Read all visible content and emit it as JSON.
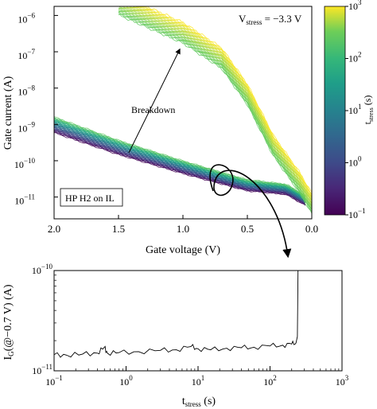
{
  "chart_data": [
    {
      "type": "line",
      "xlabel": "Gate voltage (V)",
      "ylabel": "Gate current (A)",
      "xlim": [
        2.0,
        0.0
      ],
      "ylim_log10": [
        -11.6,
        -5.75
      ],
      "y_scale": "log",
      "x_ticks": [
        "2.0",
        "1.5",
        "1.0",
        "0.5",
        "0.0"
      ],
      "y_ticks": [
        "10^-11",
        "10^-10",
        "10^-9",
        "10^-8",
        "10^-7",
        "10^-6"
      ],
      "annotations": {
        "stress": "V_stress = −3.3 V",
        "breakdown": "Breakdown",
        "sample": "HP H2 on IL"
      },
      "colorbar": {
        "label": "t_stress (s)",
        "scale": "log",
        "colormap": "viridis",
        "ticks": [
          "10^-1",
          "10^0",
          "10^1",
          "10^2",
          "10^3"
        ],
        "range_log10": [
          -1,
          3
        ]
      },
      "series_groups": [
        {
          "state": "pre-breakdown",
          "t_stress_range_s": [
            0.1,
            250
          ],
          "points": [
            [
              2.0,
              6e-10
            ],
            [
              1.5,
              1.5e-10
            ],
            [
              1.0,
              4.5e-11
            ],
            [
              0.5,
              1.5e-11
            ],
            [
              0.2,
              1.2e-11
            ],
            [
              0.05,
              6e-12
            ]
          ]
        },
        {
          "state": "post-breakdown",
          "t_stress_range_s": [
            250,
            1000
          ],
          "points": [
            [
              1.5,
              1.5e-06
            ],
            [
              1.0,
              2.5e-07
            ],
            [
              0.7,
              5e-08
            ],
            [
              0.5,
              5e-09
            ],
            [
              0.3,
              2e-10
            ],
            [
              0.1,
              2e-11
            ],
            [
              0.0,
              5e-12
            ]
          ]
        }
      ]
    },
    {
      "type": "line",
      "xlabel": "t_stress (s)",
      "ylabel": "I_G(@−0.7 V) (A)",
      "x_scale": "log",
      "y_scale": "log",
      "xlim_log10": [
        -1,
        3
      ],
      "ylim_log10": [
        -11,
        -10
      ],
      "x_ticks": [
        "10^-1",
        "10^0",
        "10^1",
        "10^2",
        "10^3"
      ],
      "y_ticks": [
        "10^-11",
        "10^-10"
      ],
      "series": [
        {
          "x": [
            0.1,
            0.15,
            0.25,
            0.4,
            0.5,
            0.55,
            0.8,
            1.5,
            3,
            5,
            8,
            10,
            15,
            25,
            40,
            60,
            100,
            150,
            200,
            230,
            240,
            245,
            250
          ],
          "y": [
            1.45e-11,
            1.43e-11,
            1.47e-11,
            1.5e-11,
            1.72e-11,
            1.5e-11,
            1.52e-11,
            1.55e-11,
            1.6e-11,
            1.62e-11,
            1.75e-11,
            1.66e-11,
            1.62e-11,
            1.68e-11,
            1.7e-11,
            1.72e-11,
            1.77e-11,
            1.8e-11,
            1.85e-11,
            1.9e-11,
            2.2e-11,
            1e-10,
            1e-10
          ]
        }
      ]
    }
  ]
}
